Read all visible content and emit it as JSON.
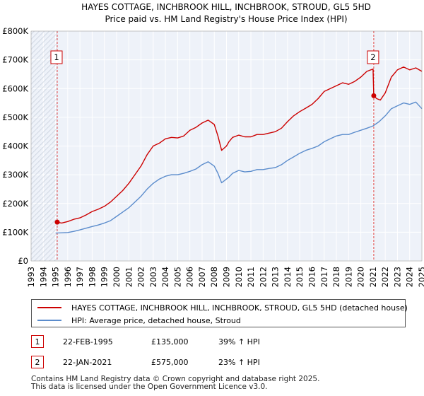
{
  "chart_data": {
    "type": "line",
    "title": "HAYES COTTAGE, INCHBROOK HILL, INCHBROOK, STROUD, GL5 5HD",
    "subtitle": "Price paid vs. HM Land Registry's House Price Index (HPI)",
    "xlabel": "",
    "ylabel": "",
    "xlim": [
      1993,
      2025
    ],
    "ylim": [
      0,
      800000
    ],
    "x_ticks": [
      "1993",
      "1994",
      "1995",
      "1996",
      "1997",
      "1998",
      "1999",
      "2000",
      "2001",
      "2002",
      "2003",
      "2004",
      "2005",
      "2006",
      "2007",
      "2008",
      "2009",
      "2010",
      "2011",
      "2012",
      "2013",
      "2014",
      "2015",
      "2016",
      "2017",
      "2018",
      "2019",
      "2020",
      "2021",
      "2022",
      "2023",
      "2024",
      "2025"
    ],
    "y_ticks": [
      {
        "value": 0,
        "label": "£0"
      },
      {
        "value": 100000,
        "label": "£100K"
      },
      {
        "value": 200000,
        "label": "£200K"
      },
      {
        "value": 300000,
        "label": "£300K"
      },
      {
        "value": 400000,
        "label": "£400K"
      },
      {
        "value": 500000,
        "label": "£500K"
      },
      {
        "value": 600000,
        "label": "£600K"
      },
      {
        "value": 700000,
        "label": "£700K"
      },
      {
        "value": 800000,
        "label": "£800K"
      }
    ],
    "grid": true,
    "series": [
      {
        "name": "HAYES COTTAGE, INCHBROOK HILL, INCHBROOK, STROUD, GL5 5HD (detached house)",
        "color": "#cc0000",
        "x": [
          1995.14,
          1995.5,
          1996,
          1996.5,
          1997,
          1997.5,
          1998,
          1998.5,
          1999,
          1999.5,
          2000,
          2000.5,
          2001,
          2001.5,
          2002,
          2002.5,
          2003,
          2003.5,
          2004,
          2004.5,
          2005,
          2005.5,
          2006,
          2006.5,
          2007,
          2007.5,
          2008,
          2008.3,
          2008.6,
          2009,
          2009.2,
          2009.5,
          2010,
          2010.5,
          2011,
          2011.5,
          2012,
          2012.5,
          2013,
          2013.5,
          2014,
          2014.5,
          2015,
          2015.5,
          2016,
          2016.5,
          2017,
          2017.5,
          2018,
          2018.5,
          2019,
          2019.5,
          2020,
          2020.5,
          2021,
          2021.06,
          2021.3,
          2021.6,
          2022,
          2022.5,
          2023,
          2023.5,
          2024,
          2024.5,
          2025
        ],
        "y": [
          135000,
          132000,
          137000,
          145000,
          150000,
          160000,
          172000,
          180000,
          190000,
          205000,
          225000,
          245000,
          270000,
          300000,
          330000,
          370000,
          400000,
          410000,
          425000,
          430000,
          428000,
          435000,
          455000,
          465000,
          480000,
          490000,
          475000,
          435000,
          385000,
          400000,
          415000,
          430000,
          438000,
          432000,
          432000,
          440000,
          440000,
          445000,
          450000,
          462000,
          485000,
          505000,
          520000,
          532000,
          545000,
          565000,
          590000,
          600000,
          610000,
          620000,
          615000,
          625000,
          640000,
          660000,
          668000,
          575000,
          565000,
          560000,
          585000,
          640000,
          665000,
          675000,
          665000,
          672000,
          660000
        ]
      },
      {
        "name": "HPI: Average price, detached house, Stroud",
        "color": "#5b8ccc",
        "x": [
          1995,
          1995.5,
          1996,
          1996.5,
          1997,
          1997.5,
          1998,
          1998.5,
          1999,
          1999.5,
          2000,
          2000.5,
          2001,
          2001.5,
          2002,
          2002.5,
          2003,
          2003.5,
          2004,
          2004.5,
          2005,
          2005.5,
          2006,
          2006.5,
          2007,
          2007.5,
          2008,
          2008.3,
          2008.6,
          2009,
          2009.2,
          2009.5,
          2010,
          2010.5,
          2011,
          2011.5,
          2012,
          2012.5,
          2013,
          2013.5,
          2014,
          2014.5,
          2015,
          2015.5,
          2016,
          2016.5,
          2017,
          2017.5,
          2018,
          2018.5,
          2019,
          2019.5,
          2020,
          2020.5,
          2021,
          2021.5,
          2022,
          2022.5,
          2023,
          2023.5,
          2024,
          2024.5,
          2025
        ],
        "y": [
          97000,
          98000,
          99000,
          103000,
          108000,
          114000,
          120000,
          125000,
          132000,
          140000,
          155000,
          170000,
          185000,
          205000,
          225000,
          250000,
          270000,
          285000,
          295000,
          300000,
          300000,
          305000,
          312000,
          320000,
          335000,
          345000,
          330000,
          305000,
          272000,
          285000,
          292000,
          305000,
          315000,
          310000,
          312000,
          318000,
          318000,
          322000,
          325000,
          335000,
          350000,
          362000,
          375000,
          385000,
          392000,
          400000,
          415000,
          425000,
          435000,
          440000,
          440000,
          448000,
          455000,
          462000,
          470000,
          485000,
          505000,
          530000,
          540000,
          550000,
          545000,
          553000,
          530000
        ]
      }
    ],
    "annotations": [
      {
        "label": "1",
        "x": 1995.14,
        "y": 135000
      },
      {
        "label": "2",
        "x": 2021.06,
        "y": 575000
      }
    ]
  },
  "legend": {
    "items": [
      {
        "label": "HAYES COTTAGE, INCHBROOK HILL, INCHBROOK, STROUD, GL5 5HD (detached house)",
        "color": "#cc0000"
      },
      {
        "label": "HPI: Average price, detached house, Stroud",
        "color": "#5b8ccc"
      }
    ]
  },
  "sales": [
    {
      "num": "1",
      "date": "22-FEB-1995",
      "price": "£135,000",
      "hpi": "39% ↑ HPI"
    },
    {
      "num": "2",
      "date": "22-JAN-2021",
      "price": "£575,000",
      "hpi": "23% ↑ HPI"
    }
  ],
  "footer": {
    "line1": "Contains HM Land Registry data © Crown copyright and database right 2025.",
    "line2": "This data is licensed under the Open Government Licence v3.0."
  }
}
